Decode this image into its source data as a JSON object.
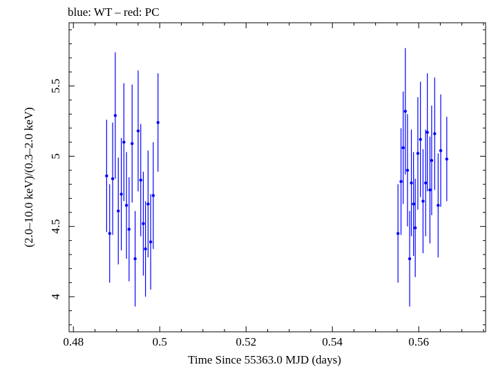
{
  "chart_data": {
    "type": "scatter",
    "title": "blue: WT – red: PC",
    "xlabel": "Time Since 55363.0 MJD (days)",
    "ylabel": "(2.0–10.0 keV)/(0.3–2.0 keV)",
    "xlim": [
      0.479,
      0.5755
    ],
    "ylim": [
      3.75,
      5.95
    ],
    "xticks": [
      0.48,
      0.5,
      0.52,
      0.54,
      0.56
    ],
    "xticklabels": [
      "0.48",
      "0.5",
      "0.52",
      "0.54",
      "0.56"
    ],
    "yticks": [
      4,
      4.5,
      5,
      5.5
    ],
    "yticklabels": [
      "4",
      "4.5",
      "5",
      "5.5"
    ],
    "grid": false,
    "series": [
      {
        "name": "WT",
        "color": "#0000ff",
        "points": [
          {
            "x": 0.4877,
            "y": 4.86,
            "err": 0.4
          },
          {
            "x": 0.4884,
            "y": 4.45,
            "err": 0.35
          },
          {
            "x": 0.4891,
            "y": 4.84,
            "err": 0.4
          },
          {
            "x": 0.4897,
            "y": 5.29,
            "err": 0.45
          },
          {
            "x": 0.4904,
            "y": 4.61,
            "err": 0.38
          },
          {
            "x": 0.4911,
            "y": 4.73,
            "err": 0.4
          },
          {
            "x": 0.4917,
            "y": 5.1,
            "err": 0.42
          },
          {
            "x": 0.4923,
            "y": 4.65,
            "err": 0.38
          },
          {
            "x": 0.4929,
            "y": 4.48,
            "err": 0.37
          },
          {
            "x": 0.4936,
            "y": 5.09,
            "err": 0.42
          },
          {
            "x": 0.4943,
            "y": 4.27,
            "err": 0.34
          },
          {
            "x": 0.495,
            "y": 5.18,
            "err": 0.43
          },
          {
            "x": 0.4956,
            "y": 4.83,
            "err": 0.4
          },
          {
            "x": 0.4962,
            "y": 4.52,
            "err": 0.37
          },
          {
            "x": 0.4967,
            "y": 4.34,
            "err": 0.34
          },
          {
            "x": 0.4973,
            "y": 4.66,
            "err": 0.38
          },
          {
            "x": 0.4979,
            "y": 4.39,
            "err": 0.34
          },
          {
            "x": 0.4985,
            "y": 4.72,
            "err": 0.38
          },
          {
            "x": 0.4996,
            "y": 5.24,
            "err": 0.35
          }
        ]
      },
      {
        "name": "WT",
        "color": "#0000ff",
        "points": [
          {
            "x": 0.5552,
            "y": 4.45,
            "err": 0.35
          },
          {
            "x": 0.5559,
            "y": 4.82,
            "err": 0.38
          },
          {
            "x": 0.5564,
            "y": 5.06,
            "err": 0.4
          },
          {
            "x": 0.5569,
            "y": 5.32,
            "err": 0.45
          },
          {
            "x": 0.5574,
            "y": 4.9,
            "err": 0.4
          },
          {
            "x": 0.5579,
            "y": 4.27,
            "err": 0.34
          },
          {
            "x": 0.5583,
            "y": 4.81,
            "err": 0.38
          },
          {
            "x": 0.5588,
            "y": 4.66,
            "err": 0.37
          },
          {
            "x": 0.5592,
            "y": 4.49,
            "err": 0.35
          },
          {
            "x": 0.5598,
            "y": 5.02,
            "err": 0.4
          },
          {
            "x": 0.5604,
            "y": 5.12,
            "err": 0.41
          },
          {
            "x": 0.561,
            "y": 4.68,
            "err": 0.37
          },
          {
            "x": 0.5616,
            "y": 4.81,
            "err": 0.38
          },
          {
            "x": 0.562,
            "y": 5.17,
            "err": 0.42
          },
          {
            "x": 0.5626,
            "y": 4.76,
            "err": 0.38
          },
          {
            "x": 0.563,
            "y": 4.97,
            "err": 0.39
          },
          {
            "x": 0.5637,
            "y": 5.16,
            "err": 0.4
          },
          {
            "x": 0.5645,
            "y": 4.65,
            "err": 0.37
          },
          {
            "x": 0.5651,
            "y": 5.04,
            "err": 0.4
          },
          {
            "x": 0.5665,
            "y": 4.98,
            "err": 0.3
          }
        ]
      }
    ]
  }
}
